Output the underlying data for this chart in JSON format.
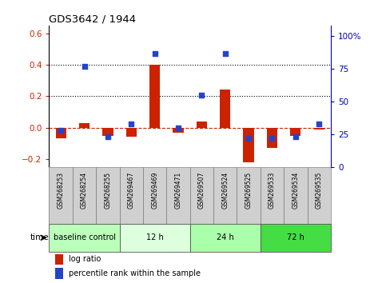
{
  "title": "GDS3642 / 1944",
  "samples": [
    "GSM268253",
    "GSM268254",
    "GSM268255",
    "GSM269467",
    "GSM269469",
    "GSM269471",
    "GSM269507",
    "GSM269524",
    "GSM269525",
    "GSM269533",
    "GSM269534",
    "GSM269535"
  ],
  "log_ratio": [
    -0.07,
    0.03,
    -0.05,
    -0.06,
    0.4,
    -0.03,
    0.04,
    0.24,
    -0.22,
    -0.13,
    -0.05,
    -0.01
  ],
  "percentile_rank": [
    28,
    77,
    23,
    33,
    87,
    30,
    55,
    87,
    22,
    22,
    23,
    33
  ],
  "groups": [
    {
      "label": "baseline control",
      "start": 0,
      "end": 3,
      "color": "#bbffbb"
    },
    {
      "label": "12 h",
      "start": 3,
      "end": 6,
      "color": "#ddffdd"
    },
    {
      "label": "24 h",
      "start": 6,
      "end": 9,
      "color": "#aaffaa"
    },
    {
      "label": "72 h",
      "start": 9,
      "end": 12,
      "color": "#44dd44"
    }
  ],
  "ylim_left": [
    -0.25,
    0.65
  ],
  "ylim_right": [
    0,
    108.33
  ],
  "yticks_left": [
    -0.2,
    0.0,
    0.2,
    0.4,
    0.6
  ],
  "yticks_right": [
    0,
    25,
    50,
    75,
    100
  ],
  "bar_color_log": "#cc2200",
  "bar_color_pct": "#2244cc",
  "background_color": "#ffffff",
  "dashed_zero_color": "#cc2200",
  "dotted_line_values": [
    0.2,
    0.4
  ],
  "bar_width": 0.45,
  "sample_box_color": "#d0d0d0"
}
